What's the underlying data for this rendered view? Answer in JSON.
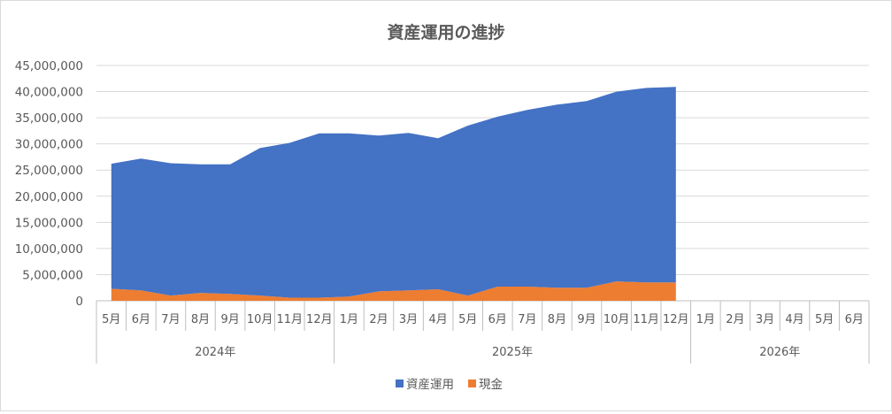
{
  "chart_data": {
    "type": "area",
    "stacked": true,
    "title": "資産運用の進捗",
    "categories": [
      "5月",
      "6月",
      "7月",
      "8月",
      "9月",
      "10月",
      "11月",
      "12月",
      "1月",
      "2月",
      "3月",
      "4月",
      "5月",
      "6月",
      "7月",
      "8月",
      "9月",
      "10月",
      "11月",
      "12月",
      "1月",
      "2月",
      "3月",
      "4月",
      "5月",
      "6月"
    ],
    "groups": [
      {
        "label": "2024年",
        "count": 8
      },
      {
        "label": "2025年",
        "count": 12
      },
      {
        "label": "2026年",
        "count": 6
      }
    ],
    "yticks": [
      "0",
      "5,000,000",
      "10,000,000",
      "15,000,000",
      "20,000,000",
      "25,000,000",
      "30,000,000",
      "35,000,000",
      "40,000,000",
      "45,000,000"
    ],
    "ylim": [
      0,
      45000000
    ],
    "grid": true,
    "legend_position": "bottom",
    "series": [
      {
        "name": "現金",
        "color": "#ed7d31",
        "values": [
          2300000,
          2000000,
          1000000,
          1500000,
          1300000,
          1000000,
          600000,
          600000,
          800000,
          1800000,
          2000000,
          2200000,
          1000000,
          2700000,
          2700000,
          2500000,
          2500000,
          3700000,
          3500000,
          3500000,
          null,
          null,
          null,
          null,
          null,
          null
        ]
      },
      {
        "name": "資産運用",
        "color": "#4472c4",
        "values": [
          23900000,
          25200000,
          25300000,
          24600000,
          24800000,
          28200000,
          29600000,
          31400000,
          31200000,
          29800000,
          30100000,
          28900000,
          32500000,
          32500000,
          33800000,
          35000000,
          35700000,
          36300000,
          37200000,
          37400000,
          null,
          null,
          null,
          null,
          null,
          null
        ]
      }
    ]
  }
}
